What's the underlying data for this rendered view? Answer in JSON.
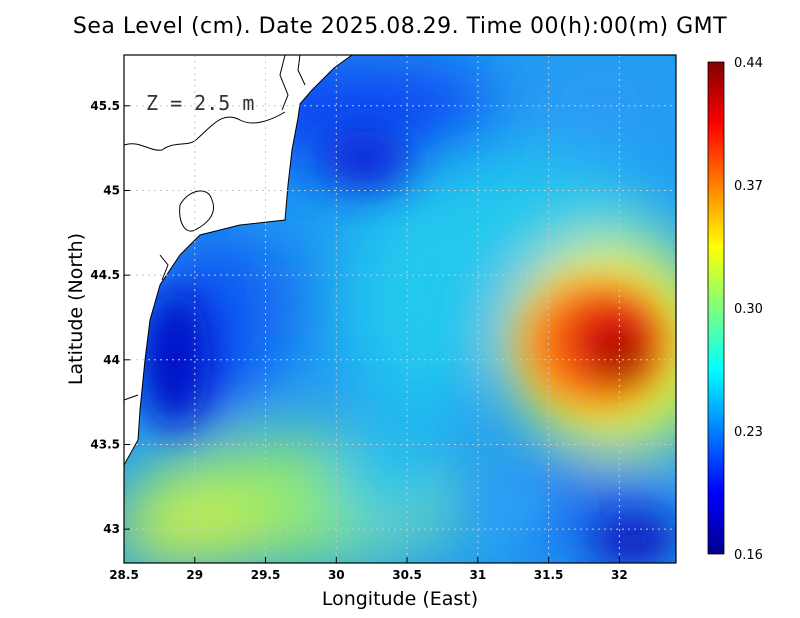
{
  "title": "Sea Level (cm). Date 2025.08.29. Time 00(h):00(m) GMT",
  "annotation": "Z = 2.5 m",
  "chart_data": {
    "type": "heatmap",
    "title": "Sea Level (cm). Date 2025.08.29. Time 00(h):00(m) GMT",
    "xlabel": "Longitude (East)",
    "ylabel": "Latitude (North)",
    "xlim": [
      28.5,
      32.4
    ],
    "ylim": [
      42.8,
      45.8
    ],
    "x_ticks": [
      "28.5",
      "29",
      "29.5",
      "30",
      "30.5",
      "31",
      "31.5",
      "32"
    ],
    "x_tick_values": [
      28.5,
      29,
      29.5,
      30,
      30.5,
      31,
      31.5,
      32
    ],
    "y_ticks": [
      "43",
      "43.5",
      "44",
      "44.5",
      "45",
      "45.5"
    ],
    "y_tick_values": [
      43,
      43.5,
      44,
      44.5,
      45,
      45.5
    ],
    "grid": true,
    "colorbar": {
      "min": 0.16,
      "max": 0.44,
      "tick_labels": [
        "0.16",
        "0.23",
        "0.30",
        "0.37",
        "0.44"
      ],
      "tick_values": [
        0.16,
        0.23,
        0.3,
        0.37,
        0.44
      ],
      "colormap": "jet"
    },
    "field_features": [
      {
        "lon": 32.0,
        "lat": 44.0,
        "value": 0.44,
        "kind": "maximum"
      },
      {
        "lon": 28.9,
        "lat": 44.1,
        "value": 0.16,
        "kind": "minimum"
      },
      {
        "lon": 32.1,
        "lat": 42.9,
        "value": 0.17,
        "kind": "minimum"
      },
      {
        "lon": 30.2,
        "lat": 45.2,
        "value": 0.18,
        "kind": "minimum"
      },
      {
        "lon": 29.8,
        "lat": 42.9,
        "value": 0.31,
        "kind": "local high"
      }
    ]
  },
  "colors": {
    "land": "#ffffff",
    "coast": "#000000",
    "grid": "#bfbfbf"
  }
}
